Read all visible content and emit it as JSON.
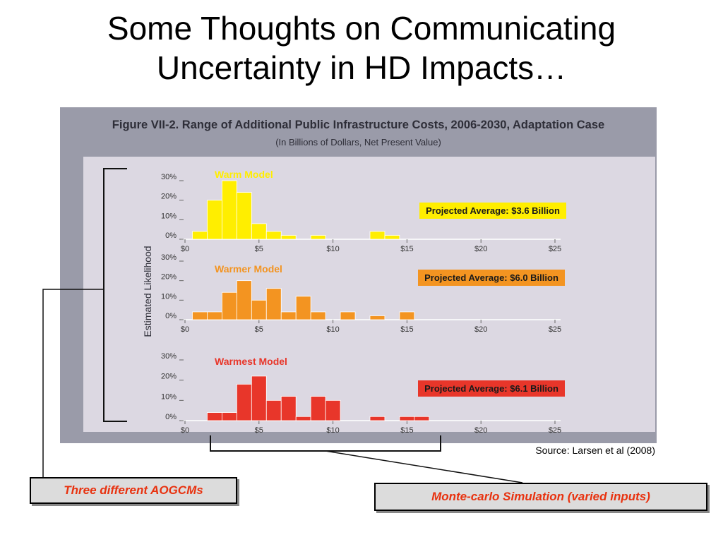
{
  "slide": {
    "title_line1": "Some Thoughts on Communicating",
    "title_line2": "Uncertainty in HD Impacts…"
  },
  "figure": {
    "title": "Figure VII-2.  Range of Additional Public Infrastructure Costs, 2006-2030,  Adaptation Case",
    "subtitle": "(In Billions of Dollars, Net Present Value)",
    "ylabel": "Estimated Likelihood",
    "source": "Source:  Larsen et al (2008)"
  },
  "callouts": {
    "left": "Three different AOGCMs",
    "right": "Monte-carlo Simulation (varied inputs)"
  },
  "colors": {
    "frame": "#9a9ba9",
    "plot_bg": "#dcd8e2",
    "callout_text": "#e8320f"
  },
  "chart_data": [
    {
      "type": "bar",
      "title": "Warm Model",
      "color": "#ffee00",
      "xlabel": "",
      "ylabel": "Estimated Likelihood",
      "x_ticks": [
        "$0",
        "$5",
        "$10",
        "$15",
        "$20",
        "$25"
      ],
      "y_ticks": [
        "0%",
        "10%",
        "20%",
        "30%"
      ],
      "xlim": [
        0,
        25
      ],
      "ylim": [
        0,
        30
      ],
      "bin_width": 1,
      "x": [
        1,
        2,
        3,
        4,
        5,
        6,
        7,
        9,
        13,
        14
      ],
      "values": [
        4,
        20,
        30,
        24,
        8,
        4,
        2,
        2,
        4,
        2
      ],
      "annotation": "Projected Average: $3.6 Billion"
    },
    {
      "type": "bar",
      "title": "Warmer Model",
      "color": "#f39421",
      "xlabel": "",
      "ylabel": "Estimated Likelihood",
      "x_ticks": [
        "$0",
        "$5",
        "$10",
        "$15",
        "$20",
        "$25"
      ],
      "y_ticks": [
        "0%",
        "10%",
        "20%",
        "30%"
      ],
      "xlim": [
        0,
        25
      ],
      "ylim": [
        0,
        30
      ],
      "bin_width": 1,
      "x": [
        1,
        2,
        3,
        4,
        5,
        6,
        7,
        8,
        9,
        11,
        13,
        15
      ],
      "values": [
        4,
        4,
        14,
        20,
        10,
        16,
        4,
        12,
        4,
        4,
        2,
        4
      ],
      "annotation": "Projected Average: $6.0 Billion"
    },
    {
      "type": "bar",
      "title": "Warmest Model",
      "color": "#e8362a",
      "xlabel": "",
      "ylabel": "Estimated Likelihood",
      "x_ticks": [
        "$0",
        "$5",
        "$10",
        "$15",
        "$20",
        "$25"
      ],
      "y_ticks": [
        "0%",
        "10%",
        "20%",
        "30%"
      ],
      "xlim": [
        0,
        25
      ],
      "ylim": [
        0,
        30
      ],
      "bin_width": 1,
      "x": [
        2,
        3,
        4,
        5,
        6,
        7,
        8,
        9,
        10,
        13,
        15,
        16
      ],
      "values": [
        4,
        4,
        18,
        22,
        10,
        12,
        2,
        12,
        10,
        2,
        2,
        2
      ],
      "annotation": "Projected Average: $6.1 Billion"
    }
  ]
}
